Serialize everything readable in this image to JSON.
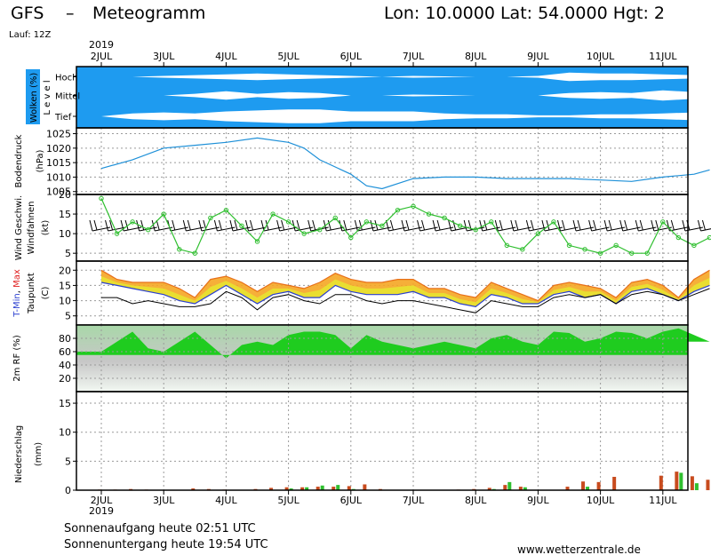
{
  "header": {
    "model": "GFS",
    "dash": "–",
    "title": "Meteogramm",
    "coords": "Lon: 10.0000  Lat: 54.0000  Hgt: 2",
    "run": "Lauf: 12Z",
    "year": "2019",
    "site": "www.wetterzentrale.de"
  },
  "footer": {
    "sunrise": "Sonnenaufgang heute 02:51 UTC",
    "sunset": "Sonnenuntergang heute 19:54 UTC"
  },
  "dates": [
    "2JUL",
    "3JUL",
    "4JUL",
    "5JUL",
    "6JUL",
    "7JUL",
    "8JUL",
    "9JUL",
    "10JUL",
    "11JUL"
  ],
  "chart_data": [
    {
      "type": "area",
      "panel": "clouds",
      "ylabel": "Wolken (%)",
      "ylabel2": "L e v e l",
      "levels": [
        "Hoch",
        "Mittel",
        "Tief"
      ],
      "colors": {
        "sky": "#1e9bf0",
        "cloud": "#ffffff"
      },
      "x_days": [
        0,
        0.5,
        1,
        1.5,
        2,
        2.5,
        3,
        3.5,
        4,
        4.5,
        5,
        5.5,
        6,
        6.5,
        7,
        7.5,
        8,
        8.5,
        9,
        9.5
      ],
      "series": [
        {
          "name": "Hoch",
          "values": [
            0,
            0,
            10,
            20,
            30,
            40,
            30,
            20,
            10,
            0,
            10,
            5,
            0,
            0,
            10,
            50,
            40,
            40,
            30,
            20
          ]
        },
        {
          "name": "Mittel",
          "values": [
            0,
            0,
            0,
            20,
            50,
            20,
            40,
            30,
            0,
            0,
            10,
            5,
            0,
            0,
            0,
            30,
            40,
            30,
            60,
            40
          ]
        },
        {
          "name": "Tief",
          "values": [
            0,
            30,
            40,
            30,
            50,
            60,
            70,
            70,
            50,
            50,
            50,
            30,
            20,
            20,
            10,
            10,
            20,
            20,
            30,
            40
          ]
        }
      ]
    },
    {
      "type": "line",
      "panel": "pressure",
      "ylabel": "Bodendruck",
      "unit": "(hPa)",
      "ylim": [
        1004,
        1027
      ],
      "yticks": [
        1005,
        1010,
        1015,
        1020,
        1025
      ],
      "color": "#1e90d8",
      "x_days": [
        0,
        0.5,
        1,
        1.5,
        2,
        2.5,
        3,
        3.25,
        3.5,
        4,
        4.25,
        4.5,
        5,
        5.5,
        6,
        6.5,
        7,
        7.5,
        8,
        8.5,
        9,
        9.5,
        9.75
      ],
      "values": [
        1013,
        1016,
        1020,
        1021,
        1022,
        1023.5,
        1022,
        1020,
        1016,
        1011,
        1007,
        1006,
        1009.5,
        1010,
        1010,
        1009.5,
        1009.5,
        1009.5,
        1009,
        1008.5,
        1010,
        1011,
        1012.5
      ]
    },
    {
      "type": "line",
      "panel": "wind",
      "ylabel": "Wind Geschwi.",
      "ylabel2": "Windfahnen",
      "unit": "(kt)",
      "ylim": [
        3,
        20
      ],
      "yticks": [
        5,
        10,
        15,
        20
      ],
      "color": "#2fbf2f",
      "x_days": [
        0,
        0.25,
        0.5,
        0.75,
        1,
        1.25,
        1.5,
        1.75,
        2,
        2.25,
        2.5,
        2.75,
        3,
        3.25,
        3.5,
        3.75,
        4,
        4.25,
        4.5,
        4.75,
        5,
        5.25,
        5.5,
        5.75,
        6,
        6.25,
        6.5,
        6.75,
        7,
        7.25,
        7.5,
        7.75,
        8,
        8.25,
        8.5,
        8.75,
        9,
        9.25,
        9.5,
        9.75
      ],
      "values": [
        19,
        10,
        13,
        11,
        15,
        6,
        5,
        14,
        16,
        12,
        8,
        15,
        13,
        10,
        11,
        14,
        9,
        13,
        12,
        16,
        17,
        15,
        14,
        12,
        11,
        13,
        7,
        6,
        10,
        13,
        7,
        6,
        5,
        7,
        5,
        5,
        13,
        9,
        7,
        9
      ]
    },
    {
      "type": "area",
      "panel": "temperature",
      "ylabel": "T-Min, Max",
      "ylabel2": "Taupunkt",
      "unit": "(C)",
      "ylim": [
        2,
        23
      ],
      "yticks": [
        5,
        10,
        15,
        20
      ],
      "colors": {
        "tmax": "#e8701a",
        "tmin": "#2a3fd0",
        "dew": "#000000",
        "fill_hot": "#f5a623",
        "fill_cool": "#e6e630"
      },
      "x_days": [
        0,
        0.25,
        0.5,
        0.75,
        1,
        1.25,
        1.5,
        1.75,
        2,
        2.25,
        2.5,
        2.75,
        3,
        3.25,
        3.5,
        3.75,
        4,
        4.25,
        4.5,
        4.75,
        5,
        5.25,
        5.5,
        5.75,
        6,
        6.25,
        6.5,
        6.75,
        7,
        7.25,
        7.5,
        7.75,
        8,
        8.25,
        8.5,
        8.75,
        9,
        9.25,
        9.5,
        9.75
      ],
      "series": [
        {
          "name": "T-Max",
          "values": [
            20,
            17,
            16,
            16,
            16,
            14,
            11,
            17,
            18,
            16,
            13,
            16,
            15,
            14,
            16,
            19,
            17,
            16,
            16,
            17,
            17,
            14,
            14,
            12,
            11,
            16,
            14,
            12,
            10,
            15,
            16,
            15,
            14,
            11,
            16,
            17,
            15,
            11,
            17,
            20
          ]
        },
        {
          "name": "T-Min",
          "values": [
            16,
            15,
            14,
            13,
            12,
            10,
            9,
            12,
            15,
            12,
            9,
            12,
            13,
            11,
            11,
            15,
            13,
            12,
            12,
            12,
            13,
            11,
            11,
            9,
            8,
            12,
            11,
            9,
            9,
            12,
            13,
            11,
            12,
            9,
            13,
            14,
            12,
            10,
            13,
            15
          ]
        },
        {
          "name": "Taupunkt",
          "values": [
            11,
            11,
            9,
            10,
            9,
            8,
            8,
            9,
            13,
            11,
            7,
            11,
            12,
            10,
            9,
            12,
            12,
            10,
            9,
            10,
            10,
            9,
            8,
            7,
            6,
            10,
            9,
            8,
            8,
            11,
            12,
            11,
            12,
            9,
            12,
            13,
            12,
            10,
            12,
            14
          ]
        }
      ]
    },
    {
      "type": "area",
      "panel": "humidity",
      "ylabel": "2m RF (%)",
      "ylim": [
        0,
        100
      ],
      "yticks": [
        20,
        40,
        60,
        80
      ],
      "color": "#1fcc1f",
      "x_days": [
        0,
        0.25,
        0.5,
        0.75,
        1,
        1.25,
        1.5,
        1.75,
        2,
        2.25,
        2.5,
        2.75,
        3,
        3.25,
        3.5,
        3.75,
        4,
        4.25,
        4.5,
        4.75,
        5,
        5.25,
        5.5,
        5.75,
        6,
        6.25,
        6.5,
        6.75,
        7,
        7.25,
        7.5,
        7.75,
        8,
        8.25,
        8.5,
        8.75,
        9,
        9.25,
        9.5,
        9.75
      ],
      "values": [
        60,
        75,
        90,
        65,
        60,
        75,
        90,
        70,
        50,
        70,
        75,
        70,
        85,
        90,
        90,
        85,
        65,
        85,
        75,
        70,
        65,
        70,
        75,
        70,
        65,
        80,
        85,
        75,
        70,
        90,
        88,
        75,
        80,
        90,
        88,
        80,
        90,
        95,
        85,
        75
      ]
    },
    {
      "type": "bar",
      "panel": "precipitation",
      "ylabel": "Niederschlag",
      "unit": "(mm)",
      "ylim": [
        0,
        17
      ],
      "yticks": [
        0,
        5,
        10,
        15
      ],
      "colors": {
        "conv": "#c84b1e",
        "large": "#2fbf2f"
      },
      "x_days": [
        0,
        0.25,
        0.5,
        0.75,
        1,
        1.25,
        1.5,
        1.75,
        2,
        2.25,
        2.5,
        2.75,
        3,
        3.25,
        3.5,
        3.75,
        4,
        4.25,
        4.5,
        4.75,
        5,
        5.25,
        5.5,
        5.75,
        6,
        6.25,
        6.5,
        6.75,
        7,
        7.25,
        7.5,
        7.75,
        8,
        8.25,
        8.5,
        8.75,
        9,
        9.25,
        9.5,
        9.75
      ],
      "series": [
        {
          "name": "conv",
          "values": [
            0.1,
            0.1,
            0.2,
            0.1,
            0,
            0,
            0.3,
            0.2,
            0.1,
            0,
            0.2,
            0.4,
            0.5,
            0.5,
            0.6,
            0.6,
            0.7,
            1.0,
            0.2,
            0,
            0,
            0,
            0,
            0.1,
            0.2,
            0.4,
            0.9,
            0.6,
            0,
            0,
            0.6,
            1.5,
            1.4,
            2.3,
            0,
            0,
            2.5,
            3.2,
            2.4,
            1.8
          ]
        },
        {
          "name": "large",
          "values": [
            0,
            0,
            0,
            0,
            0,
            0,
            0,
            0,
            0,
            0,
            0,
            0,
            0.3,
            0.5,
            0.8,
            0.9,
            0.2,
            0,
            0,
            0,
            0,
            0,
            0,
            0,
            0,
            0.2,
            1.4,
            0.5,
            0,
            0,
            0,
            0.6,
            0,
            0,
            0,
            0,
            0,
            3.0,
            1.2,
            0
          ]
        }
      ]
    }
  ]
}
